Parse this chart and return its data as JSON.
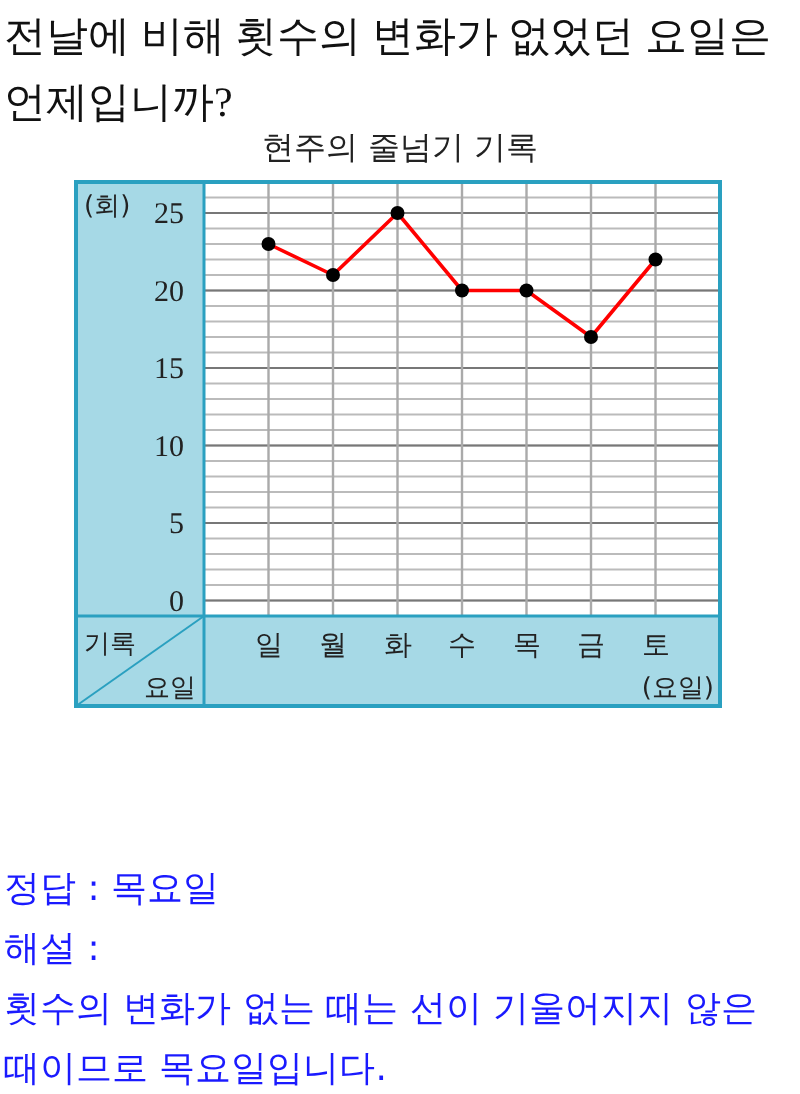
{
  "chart_data": {
    "type": "line",
    "title": "현주의 줄넘기 기록",
    "categories": [
      "일",
      "월",
      "화",
      "수",
      "목",
      "금",
      "토"
    ],
    "series": [
      {
        "color": "#ff0000",
        "values": [
          23,
          21,
          25,
          20,
          20,
          17,
          22
        ]
      }
    ],
    "ylabel": "(회)",
    "xlabel": "(요일)",
    "ylim": [
      -1,
      27
    ],
    "yticks": [
      0,
      5,
      10,
      15,
      20,
      25
    ],
    "grid": true,
    "marker": "circle",
    "line_style": "solid",
    "annotations": [
      "전날에 비해 횟수의 변화가 없었던 요일은 언제입니까?",
      "기록",
      "요일",
      "정답 : 목요일",
      "해설 :",
      "횟수의 변화가 없는 때는 선이 기울어지지 않은 때이므로 목요일입니다."
    ]
  }
}
